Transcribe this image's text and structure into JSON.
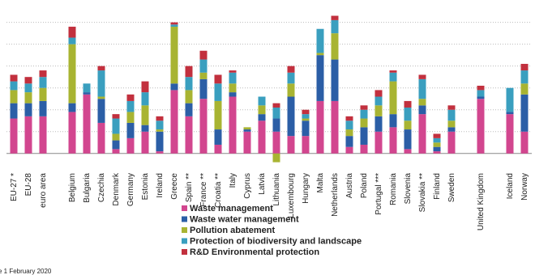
{
  "chart_data": {
    "type": "stacked_bar",
    "categories": [
      "EU-27 *",
      "EU-28",
      "euro area",
      null,
      "Belgium",
      "Bulgaria",
      "Czechia",
      "Denmark",
      "Germany",
      "Estonia",
      "Ireland",
      "Greece",
      "Spain **",
      "France **",
      "Croatia **",
      "Italy",
      "Cyprus",
      "Latvia",
      "Lithuania",
      "Luxembourg",
      "Hungary",
      "Malta",
      "Netherlands",
      "Austria",
      "Poland",
      "Portugal ***",
      "Romania",
      "Slovenia",
      "Slovakia **",
      "Finland",
      "Sweden",
      null,
      "United Kingdom",
      null,
      "Iceland",
      "Norway"
    ],
    "series": [
      {
        "name": "Waste management",
        "color": "#d2468f",
        "values": [
          1.6,
          1.7,
          1.7,
          null,
          1.9,
          2.7,
          1.4,
          0.2,
          0.7,
          1.0,
          0.1,
          2.9,
          1.7,
          2.5,
          0.4,
          2.6,
          1.0,
          1.5,
          1.0,
          0.8,
          0.8,
          2.4,
          2.4,
          0.3,
          0.4,
          1.0,
          1.2,
          0.2,
          1.8,
          0.1,
          1.0,
          null,
          2.5,
          null,
          1.8,
          1.0
        ]
      },
      {
        "name": "Waste water management",
        "color": "#2b5ea6",
        "values": [
          0.7,
          0.6,
          0.7,
          null,
          0.4,
          0.1,
          1.1,
          0.4,
          0.7,
          0.3,
          0.9,
          0.3,
          0.6,
          0.9,
          0.7,
          0.2,
          0.1,
          0.3,
          0.6,
          1.8,
          0.7,
          2.1,
          1.9,
          0.5,
          0.8,
          0.7,
          0.6,
          0.9,
          0.4,
          0.2,
          0.2,
          null,
          0.1,
          null,
          0.1,
          1.7
        ]
      },
      {
        "name": "Pollution abatement",
        "color": "#a8b432",
        "values": [
          0.6,
          0.5,
          0.6,
          null,
          2.7,
          0,
          0.1,
          0.3,
          0.5,
          0.9,
          0.1,
          2.6,
          0.6,
          0.3,
          1.3,
          0.4,
          0.1,
          0.4,
          -0.4,
          0.6,
          0.1,
          0.1,
          1.2,
          0.3,
          0.4,
          0.5,
          1.5,
          0.4,
          0.3,
          0.2,
          0.3,
          null,
          0,
          null,
          0,
          0.5
        ]
      },
      {
        "name": "Protection of biodiversity and landscape",
        "color": "#3a9fbf",
        "values": [
          0.4,
          0.4,
          0.5,
          null,
          0.3,
          0.4,
          1.2,
          0.7,
          0.5,
          0.6,
          0.4,
          0.1,
          0.6,
          0.6,
          0.8,
          0.5,
          0,
          0.4,
          0.5,
          0.5,
          0.2,
          1.1,
          0.6,
          0.4,
          0.4,
          0.4,
          0.4,
          0.6,
          0.9,
          0.2,
          0.5,
          null,
          0.3,
          null,
          1.1,
          0.6
        ]
      },
      {
        "name": "R&D Environmental protection",
        "color": "#c2303e",
        "values": [
          0.3,
          0.3,
          0.3,
          null,
          0.5,
          0,
          0.2,
          0.2,
          0.3,
          0.5,
          0.2,
          0.1,
          0.5,
          0.4,
          0.4,
          0.1,
          0,
          0,
          0.2,
          0.3,
          0.2,
          0,
          0.2,
          0.2,
          0.2,
          0.3,
          0.1,
          0.3,
          0.2,
          0.2,
          0.2,
          null,
          0.2,
          null,
          0,
          0.3
        ]
      }
    ],
    "ylim": [
      -0.6,
      6.8
    ],
    "yticks": [
      0,
      1,
      2,
      3,
      4,
      5,
      6
    ],
    "grid": true,
    "ytick_labels": false,
    "source_note": "e 1 February 2020"
  }
}
